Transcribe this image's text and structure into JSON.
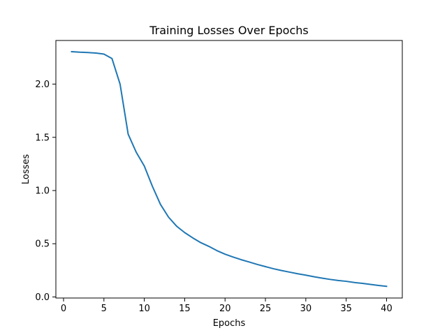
{
  "chart_data": {
    "type": "line",
    "title": "Training Losses Over Epochs",
    "xlabel": "Epochs",
    "ylabel": "Losses",
    "xlim": [
      -0.95,
      41.95
    ],
    "ylim": [
      -0.01,
      2.41
    ],
    "xticks": [
      0,
      5,
      10,
      15,
      20,
      25,
      30,
      35,
      40
    ],
    "xtick_labels": [
      "0",
      "5",
      "10",
      "15",
      "20",
      "25",
      "30",
      "35",
      "40"
    ],
    "yticks": [
      0.0,
      0.5,
      1.0,
      1.5,
      2.0
    ],
    "ytick_labels": [
      "0.0",
      "0.5",
      "1.0",
      "1.5",
      "2.0"
    ],
    "grid": false,
    "series": [
      {
        "color": "#1f77b4",
        "x": [
          1,
          2,
          3,
          4,
          5,
          6,
          7,
          8,
          9,
          10,
          11,
          12,
          13,
          14,
          15,
          16,
          17,
          18,
          19,
          20,
          21,
          22,
          23,
          24,
          25,
          26,
          27,
          28,
          29,
          30,
          31,
          32,
          33,
          34,
          35,
          36,
          37,
          38,
          39,
          40
        ],
        "y": [
          2.305,
          2.3,
          2.297,
          2.292,
          2.282,
          2.24,
          2.0,
          1.53,
          1.36,
          1.23,
          1.04,
          0.87,
          0.75,
          0.665,
          0.605,
          0.555,
          0.51,
          0.475,
          0.435,
          0.402,
          0.375,
          0.35,
          0.328,
          0.305,
          0.285,
          0.265,
          0.248,
          0.233,
          0.218,
          0.205,
          0.19,
          0.177,
          0.165,
          0.155,
          0.147,
          0.136,
          0.128,
          0.118,
          0.108,
          0.1
        ]
      }
    ]
  }
}
